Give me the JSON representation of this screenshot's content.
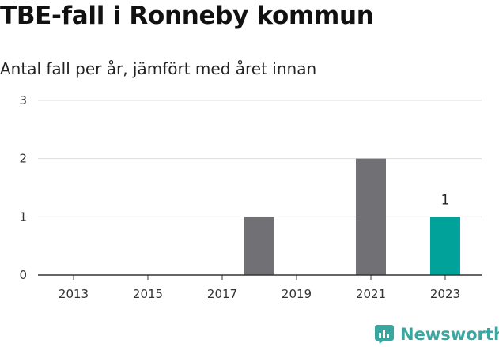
{
  "brand": {
    "name": "Newsworthy",
    "icon": "newsworthy-logo-icon",
    "color": "#3aa6a0"
  },
  "colors": {
    "bar_default": "#717074",
    "bar_highlight": "#00a29a",
    "grid": "#dddddd",
    "axis": "#333333"
  },
  "chart_data": {
    "type": "bar",
    "title": "TBE-fall i Ronneby kommun",
    "subtitle": "Antal fall per år, jämfört med året innan",
    "xlabel": "",
    "ylabel": "",
    "categories": [
      "2013",
      "2014",
      "2015",
      "2016",
      "2017",
      "2018",
      "2019",
      "2020",
      "2021",
      "2022",
      "2023"
    ],
    "x_tick_labels": [
      "2013",
      "2015",
      "2017",
      "2019",
      "2021",
      "2023"
    ],
    "values": [
      0,
      0,
      0,
      0,
      0,
      1,
      0,
      0,
      2,
      0,
      1
    ],
    "highlight_category": "2023",
    "data_labels": [
      {
        "category": "2023",
        "text": "1"
      }
    ],
    "ylim": [
      0,
      3
    ],
    "y_ticks": [
      "0",
      "1",
      "2",
      "3"
    ],
    "grid": true,
    "legend": "none"
  }
}
